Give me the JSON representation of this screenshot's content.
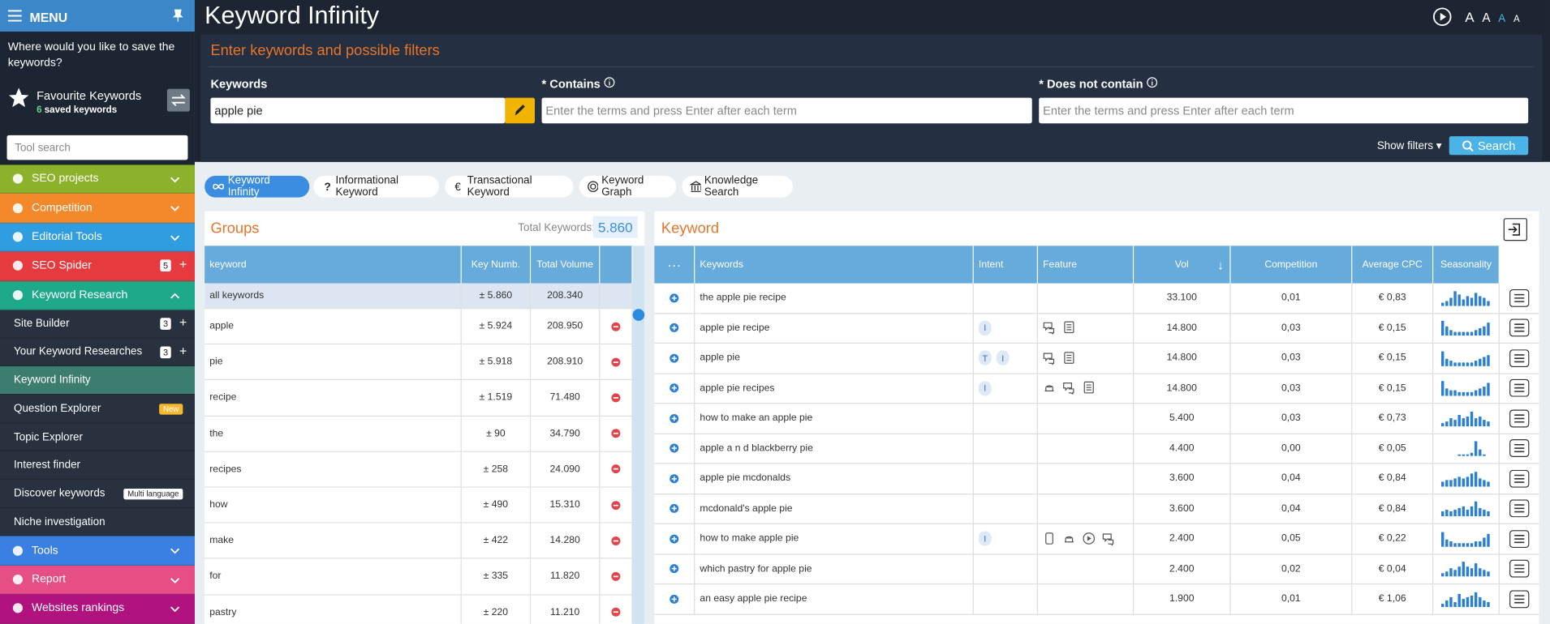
{
  "sidebar": {
    "menu": "MENU",
    "save_prompt": "Where would you like to save the keywords?",
    "favourites": {
      "title": "Favourite Keywords",
      "count": "6",
      "label": "saved keywords"
    },
    "tool_search": "Tool search",
    "items": [
      {
        "label": "SEO projects",
        "color": "#8cb22b"
      },
      {
        "label": "Competition",
        "color": "#f4892b"
      },
      {
        "label": "Editorial Tools",
        "color": "#2f9de0"
      },
      {
        "label": "SEO Spider",
        "color": "#e63a3f",
        "badge": "5"
      },
      {
        "label": "Keyword Research",
        "color": "#1ea98a",
        "children": [
          {
            "label": "Site Builder",
            "badge": "3"
          },
          {
            "label": "Your Keyword Researches",
            "badge": "3"
          },
          {
            "label": "Keyword Infinity",
            "active": true
          },
          {
            "label": "Question Explorer",
            "tag": "New"
          },
          {
            "label": "Topic Explorer"
          },
          {
            "label": "Interest finder"
          },
          {
            "label": "Discover keywords",
            "tag": "Multi language"
          },
          {
            "label": "Niche investigation"
          }
        ]
      },
      {
        "label": "Tools",
        "color": "#3b7fe0"
      },
      {
        "label": "Report",
        "color": "#e64f86"
      },
      {
        "label": "Websites rankings",
        "color": "#b0137e"
      }
    ]
  },
  "header": {
    "title": "Keyword Infinity",
    "font_sizes": [
      "A",
      "A",
      "A",
      "A"
    ]
  },
  "search": {
    "title": "Enter keywords and possible filters",
    "keywords_label": "Keywords",
    "keywords_value": "apple pie",
    "contains_label": "* Contains",
    "does_not_contain_label": "* Does not contain",
    "placeholder": "Enter the terms and press Enter after each term",
    "show_filters": "Show filters",
    "search_button": "Search"
  },
  "tabs": [
    "Keyword Infinity",
    "Informational Keyword",
    "Transactional Keyword",
    "Keyword Graph",
    "Knowledge Search"
  ],
  "groups": {
    "title": "Groups",
    "total_label": "Total Keywords:",
    "total": "5.860",
    "columns": [
      "keyword",
      "Key Numb.",
      "Total Volume"
    ],
    "rows": [
      [
        "all keywords",
        "± 5.860",
        "208.340"
      ],
      [
        "apple",
        "± 5.924",
        "208.950"
      ],
      [
        "pie",
        "± 5.918",
        "208.910"
      ],
      [
        "recipe",
        "± 1.519",
        "71.480"
      ],
      [
        "the",
        "± 90",
        "34.790"
      ],
      [
        "recipes",
        "± 258",
        "24.090"
      ],
      [
        "how",
        "± 490",
        "15.310"
      ],
      [
        "make",
        "± 422",
        "14.280"
      ],
      [
        "for",
        "± 335",
        "11.820"
      ],
      [
        "pastry",
        "± 220",
        "11.210"
      ]
    ]
  },
  "keywords": {
    "title": "Keyword",
    "columns": [
      "Keywords",
      "Intent",
      "Feature",
      "Vol",
      "Competition",
      "Average CPC",
      "Seasonality"
    ],
    "rows": [
      {
        "keyword": "the apple pie recipe",
        "intent": [],
        "vol": "33.100",
        "competition": "0,01",
        "cpc": "€ 0,83",
        "seasonality": [
          2,
          3,
          5,
          9,
          7,
          4,
          6,
          5,
          8,
          6,
          5,
          3
        ]
      },
      {
        "keyword": "apple pie recipe",
        "intent": [
          "I"
        ],
        "vol": "14.800",
        "competition": "0,03",
        "cpc": "€ 0,15",
        "seasonality": [
          8,
          5,
          3,
          2,
          2,
          2,
          2,
          2,
          3,
          4,
          5,
          7
        ]
      },
      {
        "keyword": "apple pie",
        "intent": [
          "T",
          "I"
        ],
        "vol": "14.800",
        "competition": "0,03",
        "cpc": "€ 0,15",
        "seasonality": [
          8,
          4,
          3,
          2,
          2,
          2,
          2,
          2,
          3,
          4,
          5,
          6
        ]
      },
      {
        "keyword": "apple pie recipes",
        "intent": [
          "I"
        ],
        "vol": "14.800",
        "competition": "0,03",
        "cpc": "€ 0,15",
        "seasonality": [
          8,
          4,
          3,
          3,
          2,
          2,
          2,
          2,
          3,
          4,
          5,
          7
        ]
      },
      {
        "keyword": "how to make an apple pie",
        "intent": [],
        "vol": "5.400",
        "competition": "0,03",
        "cpc": "€ 0,73",
        "seasonality": [
          2,
          3,
          5,
          4,
          7,
          5,
          6,
          9,
          5,
          6,
          4,
          3
        ]
      },
      {
        "keyword": "apple a n d blackberry pie",
        "intent": [],
        "vol": "4.400",
        "competition": "0,00",
        "cpc": "€ 0,05",
        "seasonality": [
          0,
          0,
          0,
          0,
          1,
          1,
          1,
          2,
          9,
          4,
          1,
          0
        ]
      },
      {
        "keyword": "apple pie mcdonalds",
        "intent": [],
        "vol": "3.600",
        "competition": "0,04",
        "cpc": "€ 0,84",
        "seasonality": [
          3,
          4,
          4,
          5,
          6,
          5,
          6,
          8,
          9,
          5,
          4,
          3
        ]
      },
      {
        "keyword": "mcdonald's apple pie",
        "intent": [],
        "vol": "3.600",
        "competition": "0,04",
        "cpc": "€ 0,84",
        "seasonality": [
          3,
          4,
          3,
          4,
          5,
          6,
          4,
          6,
          9,
          5,
          4,
          3
        ]
      },
      {
        "keyword": "how to make apple pie",
        "intent": [
          "I"
        ],
        "vol": "2.400",
        "competition": "0,05",
        "cpc": "€ 0,22",
        "seasonality": [
          8,
          4,
          3,
          2,
          2,
          2,
          2,
          2,
          3,
          3,
          5,
          7
        ]
      },
      {
        "keyword": "which pastry for apple pie",
        "intent": [],
        "vol": "2.400",
        "competition": "0,02",
        "cpc": "€ 0,04",
        "seasonality": [
          2,
          3,
          5,
          4,
          6,
          9,
          6,
          5,
          8,
          5,
          4,
          3
        ]
      },
      {
        "keyword": "an easy apple pie recipe",
        "intent": [],
        "vol": "1.900",
        "competition": "0,01",
        "cpc": "€ 1,06",
        "seasonality": [
          2,
          4,
          6,
          3,
          8,
          5,
          6,
          7,
          9,
          6,
          4,
          3
        ]
      }
    ]
  }
}
